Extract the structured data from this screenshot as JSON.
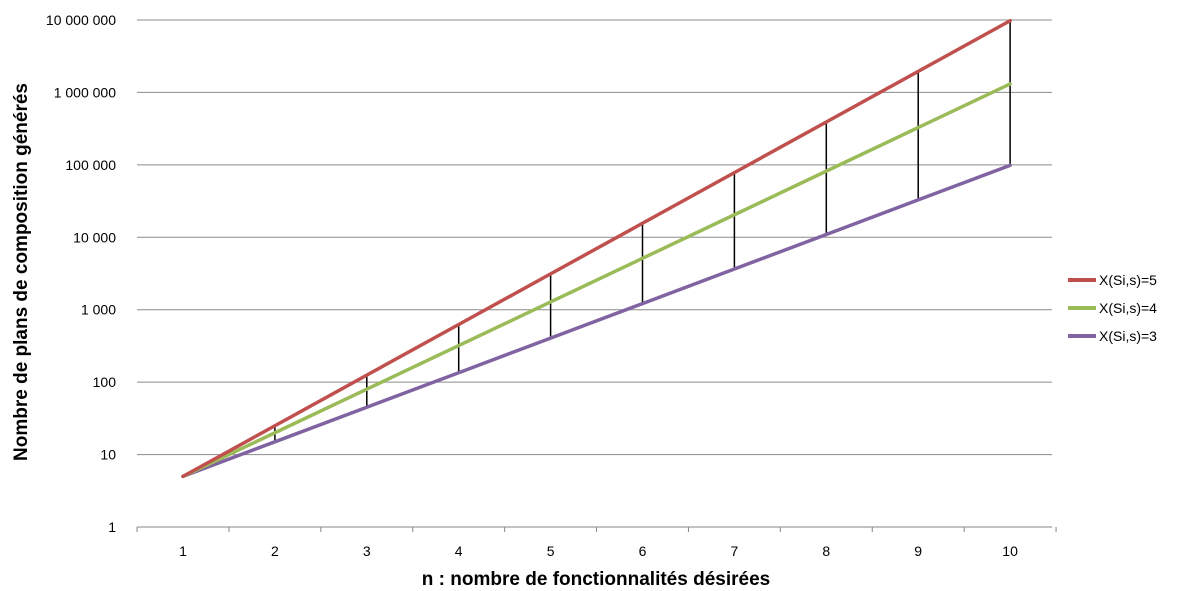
{
  "chart_data": {
    "type": "line",
    "title": "",
    "xlabel": "n : nombre de fonctionnalités désirées",
    "ylabel": "Nombre de plans de composition générés",
    "yscale": "log",
    "ylim": [
      1,
      10000000
    ],
    "x": [
      1,
      2,
      3,
      4,
      5,
      6,
      7,
      8,
      9,
      10
    ],
    "x_tick_labels": [
      "1",
      "2",
      "3",
      "4",
      "5",
      "6",
      "7",
      "8",
      "9",
      "10"
    ],
    "y_tick_values": [
      1,
      10,
      100,
      1000,
      10000,
      100000,
      1000000,
      10000000
    ],
    "y_tick_labels": [
      "1",
      "10",
      "100",
      "1 000",
      "10 000",
      "100 000",
      "1 000 000",
      "10 000 000"
    ],
    "grid": "horizontal",
    "legend_position": "right",
    "series": [
      {
        "name": "X(Si,s)=5",
        "color": "#c0504d",
        "values": [
          5,
          25,
          125,
          625,
          3125,
          15625,
          78125,
          390625,
          1953125,
          9765625
        ]
      },
      {
        "name": "X(Si,s)=4",
        "color": "#9bbb59",
        "values": [
          5,
          20,
          80,
          320,
          1280,
          5120,
          20480,
          81920,
          327680,
          1310720
        ]
      },
      {
        "name": "X(Si,s)=3",
        "color": "#8064a2",
        "values": [
          5,
          15,
          45,
          135,
          405,
          1215,
          3645,
          10935,
          32805,
          98415
        ]
      }
    ],
    "range_bars": {
      "x": [
        2,
        3,
        4,
        5,
        6,
        7,
        8,
        9,
        10
      ],
      "color": "#000000"
    }
  }
}
